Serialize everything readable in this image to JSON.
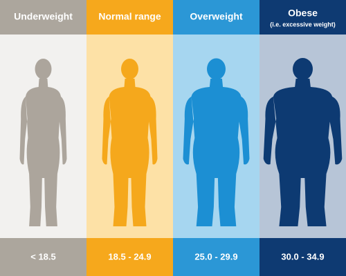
{
  "columns": [
    {
      "title": "Underweight",
      "range": "< 18.5"
    },
    {
      "title": "Normal range",
      "range": "18.5 - 24.9"
    },
    {
      "title": "Overweight",
      "range": "25.0 - 29.9"
    },
    {
      "title": "Obese",
      "subtitle": "(i.e. excessive weight)",
      "range": "30.0 - 34.9"
    }
  ]
}
